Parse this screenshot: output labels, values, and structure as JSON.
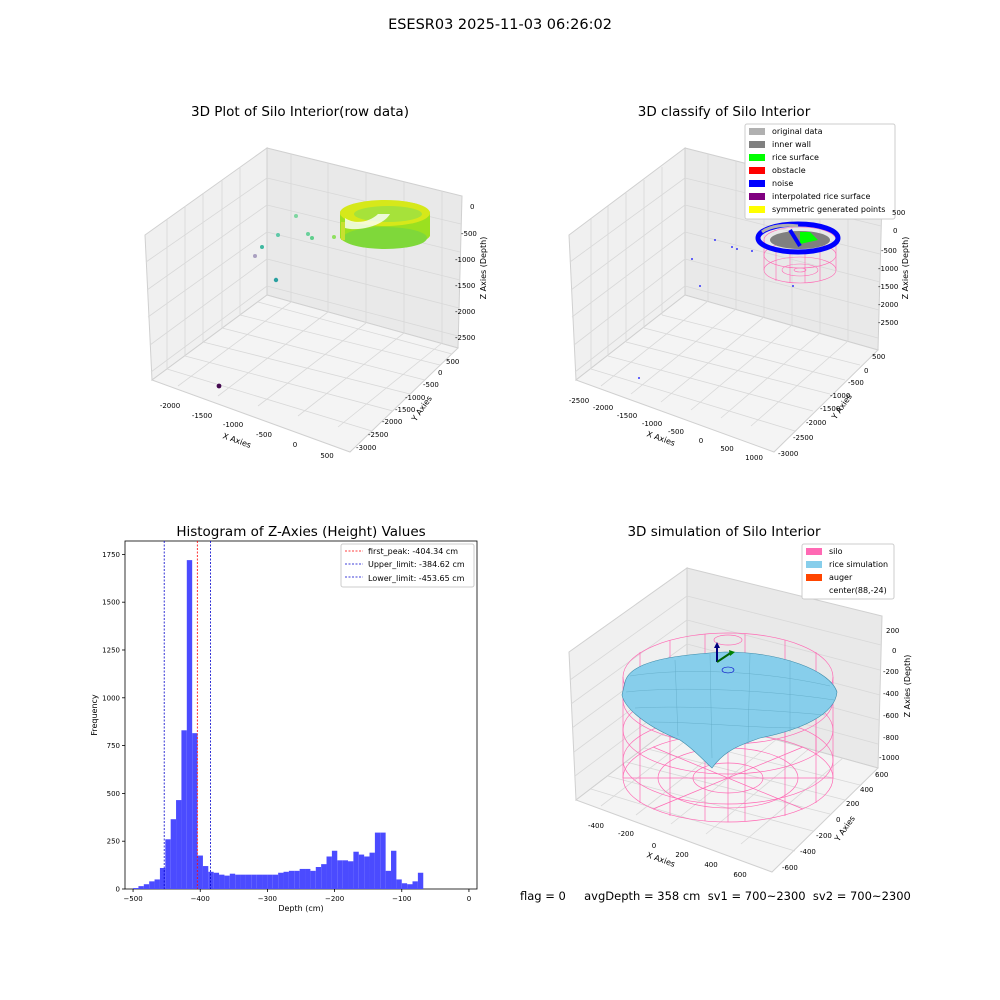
{
  "suptitle": "ESESR03 2025-11-03 06:26:02",
  "colors": {
    "histogram_bar": "#4b4bff",
    "first_peak_line": "#ff0000",
    "limit_lines": "#0000cc",
    "silo": "#ff69b4",
    "rice_simulation": "#87ceeb",
    "auger": "#ff4500",
    "original_data": "#b0b0b0",
    "inner_wall": "#808080",
    "rice_surface": "#00ff00",
    "obstacle": "#ff0000",
    "noise": "#0000ff",
    "interpolated_rice_surface": "#800080",
    "symmetric_generated_points": "#ffff00"
  },
  "panels": {
    "raw": {
      "title": "3D Plot of Silo Interior(row data)",
      "xlabel": "X Axies",
      "ylabel": "Y Axies",
      "zlabel": "Z Axies (Depth)",
      "x_ticks": [
        "-2000",
        "-1500",
        "-1000",
        "-500",
        "0",
        "500"
      ],
      "y_ticks": [
        "500",
        "0",
        "-500",
        "-1000",
        "-1500",
        "-2000",
        "-2500",
        "-3000"
      ],
      "z_ticks": [
        "0",
        "-500",
        "-1000",
        "-1500",
        "-2000",
        "-2500"
      ]
    },
    "classify": {
      "title": "3D classify of Silo Interior",
      "xlabel": "X Axies",
      "ylabel": "Y Axies",
      "zlabel": "Z Axies (Depth)",
      "x_ticks": [
        "-2500",
        "-2000",
        "-1500",
        "-1000",
        "-500",
        "0",
        "500",
        "1000"
      ],
      "y_ticks": [
        "500",
        "0",
        "-500",
        "-1000",
        "-1500",
        "-2000",
        "-2500",
        "-3000"
      ],
      "z_ticks": [
        "0",
        "-500",
        "-1000",
        "-1500",
        "-2000",
        "-2500"
      ],
      "partial_z_tick": "500",
      "legend": [
        {
          "label": "original data",
          "color": "#b0b0b0"
        },
        {
          "label": "inner wall",
          "color": "#808080"
        },
        {
          "label": "rice surface",
          "color": "#00ff00"
        },
        {
          "label": "obstacle",
          "color": "#ff0000"
        },
        {
          "label": "noise",
          "color": "#0000ff"
        },
        {
          "label": "interpolated rice surface",
          "color": "#800080"
        },
        {
          "label": "symmetric generated points",
          "color": "#ffff00"
        }
      ]
    },
    "simulation": {
      "title": "3D simulation of Silo Interior",
      "xlabel": "X Axies",
      "ylabel": "Y Axies",
      "zlabel": "Z Axies (Depth)",
      "x_ticks": [
        "-400",
        "-200",
        "0",
        "200",
        "400",
        "600"
      ],
      "y_ticks": [
        "600",
        "400",
        "200",
        "0",
        "-200",
        "-400",
        "-600"
      ],
      "z_ticks": [
        "200",
        "0",
        "-200",
        "-400",
        "-600",
        "-800",
        "-1000"
      ],
      "legend": [
        {
          "label": "silo",
          "color": "#ff69b4"
        },
        {
          "label": "rice simulation",
          "color": "#87ceeb"
        },
        {
          "label": "auger",
          "color": "#ff4500"
        },
        {
          "label": "center(88,-24)",
          "color": ""
        }
      ]
    }
  },
  "chart_data": {
    "type": "bar",
    "title": "Histogram of Z-Axies (Height) Values",
    "xlabel": "Depth (cm)",
    "ylabel": "Frequency",
    "xlim": [
      -512,
      12
    ],
    "ylim": [
      0,
      1820
    ],
    "bin_width": 8,
    "x_ticks": [
      -500,
      -400,
      -300,
      -200,
      -100,
      0
    ],
    "y_ticks": [
      0,
      250,
      500,
      750,
      1000,
      1250,
      1500,
      1750
    ],
    "bin_starts": [
      -500,
      -492,
      -484,
      -476,
      -468,
      -460,
      -452,
      -444,
      -436,
      -428,
      -420,
      -412,
      -404,
      -396,
      -388,
      -380,
      -372,
      -364,
      -356,
      -348,
      -340,
      -332,
      -324,
      -316,
      -308,
      -300,
      -292,
      -284,
      -276,
      -268,
      -260,
      -252,
      -244,
      -236,
      -228,
      -220,
      -212,
      -204,
      -196,
      -188,
      -180,
      -172,
      -164,
      -156,
      -148,
      -140,
      -132,
      -124,
      -116,
      -108,
      -100,
      -92,
      -84,
      -76,
      -68,
      -60,
      -52,
      -44,
      -36,
      -28,
      -20,
      -12,
      -4
    ],
    "values": [
      5,
      15,
      25,
      40,
      50,
      110,
      260,
      365,
      465,
      830,
      1720,
      815,
      175,
      120,
      90,
      85,
      75,
      70,
      80,
      75,
      75,
      75,
      75,
      75,
      75,
      75,
      75,
      85,
      90,
      95,
      95,
      105,
      105,
      95,
      115,
      130,
      170,
      200,
      150,
      150,
      145,
      195,
      180,
      170,
      190,
      295,
      295,
      95,
      200,
      50,
      30,
      25,
      40,
      85,
      0,
      0,
      0,
      0,
      0,
      0,
      0,
      0,
      0
    ],
    "vlines": [
      {
        "label": "first_peak: -404.34 cm",
        "x": -404.34,
        "color": "#ff0000"
      },
      {
        "label": "Upper_limit: -384.62 cm",
        "x": -384.62,
        "color": "#0000cc"
      },
      {
        "label": "Lower_limit: -453.65 cm",
        "x": -453.65,
        "color": "#0000cc"
      }
    ],
    "legend_position": "upper right"
  },
  "footer": "flag = 0     avgDepth = 358 cm  sv1 = 700~2300  sv2 = 700~2300"
}
